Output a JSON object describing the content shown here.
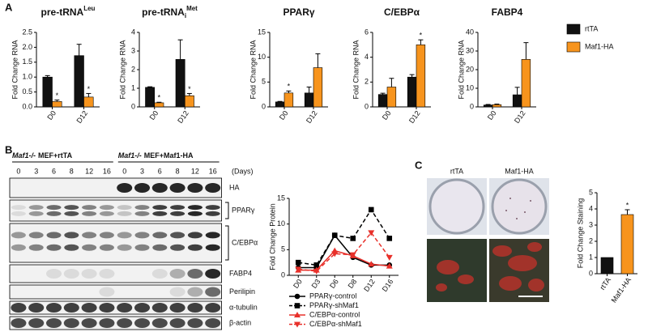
{
  "figure": {
    "panels": [
      "A",
      "B",
      "C"
    ],
    "blot": {
      "groups": [
        {
          "genotype": "Maf1-/-",
          "label": "MEF+rtTA",
          "days": [
            0,
            3,
            6,
            8,
            12,
            16
          ]
        },
        {
          "genotype": "Maf1-/-",
          "label": "MEF+Maf1-HA",
          "days": [
            0,
            3,
            6,
            8,
            12,
            16
          ]
        }
      ],
      "days_unit": "(Days)",
      "rows": [
        "HA",
        "PPARγ",
        "C/EBPα",
        "FABP4",
        "Perilipin",
        "α-tubulin",
        "β-actin"
      ]
    },
    "staining": {
      "labels": [
        "rtTA",
        "Maf1-HA"
      ]
    }
  },
  "chart_data": [
    {
      "type": "bar",
      "title": "pre-tRNA",
      "title_sup": "Leu",
      "ylabel": "Fold Change RNA",
      "categories": [
        "D0",
        "D12"
      ],
      "ylim": [
        0,
        2.5
      ],
      "yticks": [
        {
          "value": 0,
          "label": "0.0"
        },
        {
          "value": 0.5,
          "label": "0.5"
        },
        {
          "value": 1,
          "label": "1.0"
        },
        {
          "value": 1.5,
          "label": "1.5"
        },
        {
          "value": 2,
          "label": "2.0"
        },
        {
          "value": 2.5,
          "label": "2.5"
        }
      ],
      "series": [
        {
          "name": "rtTA",
          "color": "#111111",
          "values": [
            1.0,
            1.72
          ],
          "errors": [
            0.05,
            0.38
          ],
          "significance": [
            null,
            null
          ]
        },
        {
          "name": "Maf1-HA",
          "color": "#f7941d",
          "values": [
            0.18,
            0.33
          ],
          "errors": [
            0.05,
            0.12
          ],
          "significance": [
            "*",
            "*"
          ]
        }
      ]
    },
    {
      "type": "bar",
      "title": "pre-tRNA",
      "title_sub": "i",
      "title_sup": "Met",
      "ylabel": "Fold Change RNA",
      "categories": [
        "D0",
        "D12"
      ],
      "ylim": [
        0,
        4
      ],
      "yticks": [
        0,
        1,
        2,
        3,
        4
      ],
      "series": [
        {
          "name": "rtTA",
          "color": "#111111",
          "values": [
            1.05,
            2.55
          ],
          "errors": [
            0.03,
            1.05
          ],
          "significance": [
            null,
            null
          ]
        },
        {
          "name": "Maf1-HA",
          "color": "#f7941d",
          "values": [
            0.22,
            0.6
          ],
          "errors": [
            0.03,
            0.12
          ],
          "significance": [
            "*",
            "*"
          ]
        }
      ]
    },
    {
      "type": "bar",
      "title": "PPARγ",
      "ylabel": "Fold Change RNA",
      "categories": [
        "D0",
        "D12"
      ],
      "ylim": [
        0,
        15
      ],
      "yticks": [
        0,
        5,
        10,
        15
      ],
      "series": [
        {
          "name": "rtTA",
          "color": "#111111",
          "values": [
            1.0,
            2.8
          ],
          "errors": [
            0.1,
            1.2
          ],
          "significance": [
            null,
            null
          ]
        },
        {
          "name": "Maf1-HA",
          "color": "#f7941d",
          "values": [
            2.8,
            7.9
          ],
          "errors": [
            0.4,
            2.8
          ],
          "significance": [
            "*",
            null
          ]
        }
      ]
    },
    {
      "type": "bar",
      "title": "C/EBPα",
      "ylabel": "Fold Change RNA",
      "categories": [
        "D0",
        "D12"
      ],
      "ylim": [
        0,
        6
      ],
      "yticks": [
        0,
        2,
        4,
        6
      ],
      "series": [
        {
          "name": "rtTA",
          "color": "#111111",
          "values": [
            1.0,
            2.4
          ],
          "errors": [
            0.1,
            0.2
          ],
          "significance": [
            null,
            null
          ]
        },
        {
          "name": "Maf1-HA",
          "color": "#f7941d",
          "values": [
            1.6,
            5.0
          ],
          "errors": [
            0.7,
            0.4
          ],
          "significance": [
            null,
            "*"
          ]
        }
      ]
    },
    {
      "type": "bar",
      "title": "FABP4",
      "ylabel": "Fold Change RNA",
      "categories": [
        "D0",
        "D12"
      ],
      "ylim": [
        0,
        40
      ],
      "yticks": [
        0,
        10,
        20,
        30,
        40
      ],
      "series": [
        {
          "name": "rtTA",
          "color": "#111111",
          "values": [
            1.0,
            6.5
          ],
          "errors": [
            0.3,
            4.0
          ],
          "significance": [
            null,
            null
          ]
        },
        {
          "name": "Maf1-HA",
          "color": "#f7941d",
          "values": [
            1.2,
            25.5
          ],
          "errors": [
            0.3,
            9.0
          ],
          "significance": [
            null,
            null
          ]
        }
      ]
    },
    {
      "type": "line",
      "ylabel": "Fold Change Protein",
      "categories": [
        "D0",
        "D3",
        "D6",
        "D8",
        "D12",
        "D16"
      ],
      "ylim": [
        0,
        15
      ],
      "yticks": [
        0,
        5,
        10,
        15
      ],
      "series": [
        {
          "name": "PPARγ-control",
          "color": "#000000",
          "marker": "circle",
          "dashed": false,
          "values": [
            1.5,
            1.5,
            7.8,
            3.5,
            2.0,
            2.0
          ]
        },
        {
          "name": "PPARγ-shMaf1",
          "color": "#000000",
          "marker": "square",
          "dashed": true,
          "values": [
            2.5,
            2.0,
            7.8,
            7.2,
            12.8,
            7.2
          ]
        },
        {
          "name": "C/EBPα-control",
          "color": "#e8302a",
          "marker": "triangle",
          "dashed": false,
          "values": [
            1.0,
            1.0,
            4.8,
            3.8,
            2.2,
            1.8
          ]
        },
        {
          "name": "C/EBPα-shMaf1",
          "color": "#e8302a",
          "marker": "triangle-down",
          "dashed": true,
          "values": [
            1.2,
            0.8,
            4.2,
            4.0,
            8.3,
            3.5
          ]
        }
      ]
    },
    {
      "type": "bar",
      "ylabel": "Fold Change Staining",
      "categories": [
        "rtTA",
        "Maf1-HA"
      ],
      "values": [
        1.0,
        3.65
      ],
      "errors": [
        0,
        0.3
      ],
      "colors": [
        "#111111",
        "#f7941d"
      ],
      "significance": [
        null,
        "*"
      ],
      "ylim": [
        0,
        5
      ],
      "yticks": [
        0,
        1,
        2,
        3,
        4,
        5
      ]
    }
  ]
}
